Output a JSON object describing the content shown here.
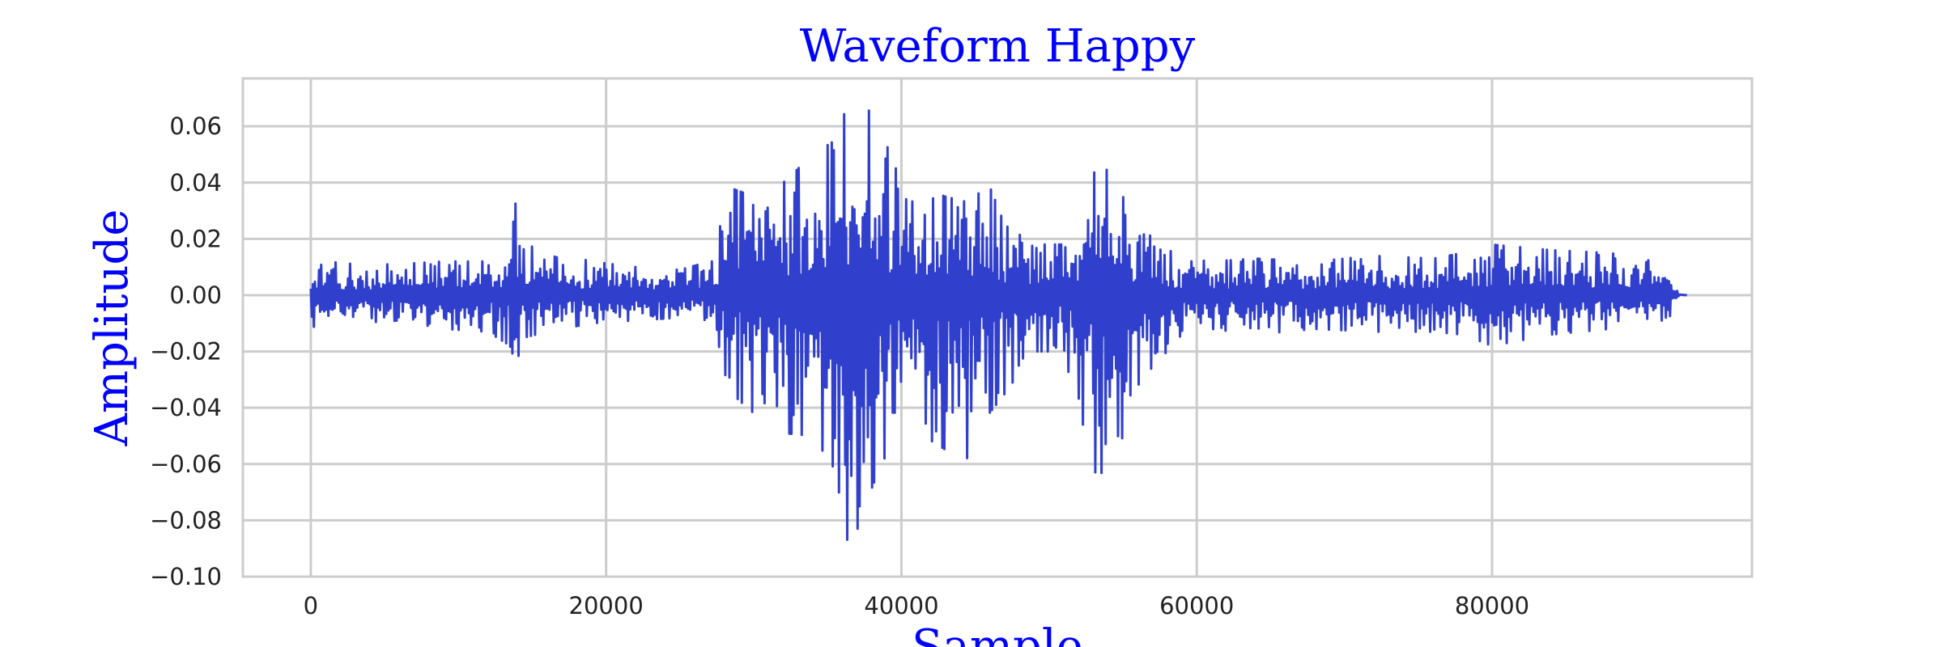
{
  "chart_data": {
    "type": "line",
    "title": "Waveform Happy",
    "xlabel": "Sample",
    "ylabel": "Amplitude",
    "xlim": [
      -4600,
      97600
    ],
    "ylim": [
      -0.1,
      0.077
    ],
    "grid": true,
    "x_ticks": [
      0,
      20000,
      40000,
      60000,
      80000
    ],
    "x_tick_labels": [
      "0",
      "20000",
      "40000",
      "60000",
      "80000"
    ],
    "y_ticks": [
      -0.1,
      -0.08,
      -0.06,
      -0.04,
      -0.02,
      0.0,
      0.02,
      0.04,
      0.06
    ],
    "y_tick_labels": [
      "−0.10",
      "−0.08",
      "−0.06",
      "−0.04",
      "−0.02",
      "0.00",
      "0.02",
      "0.04",
      "0.06"
    ],
    "series": [
      {
        "color": "#3040cc",
        "sample_count": 92700,
        "envelope": {
          "x": [
            0,
            1000,
            3000,
            6000,
            9000,
            12000,
            13500,
            14000,
            14500,
            16000,
            19000,
            22000,
            25000,
            27000,
            28500,
            30000,
            32000,
            34000,
            35500,
            36500,
            37500,
            38500,
            40000,
            41500,
            43000,
            44500,
            45500,
            47000,
            49000,
            51000,
            52500,
            53500,
            55000,
            57000,
            59000,
            61000,
            64000,
            68000,
            72000,
            76000,
            78000,
            80000,
            84000,
            88000,
            91000,
            92000,
            92700
          ],
          "max": [
            0.008,
            0.012,
            0.011,
            0.011,
            0.012,
            0.012,
            0.016,
            0.039,
            0.02,
            0.016,
            0.012,
            0.01,
            0.009,
            0.012,
            0.038,
            0.035,
            0.04,
            0.05,
            0.055,
            0.07,
            0.068,
            0.06,
            0.04,
            0.038,
            0.035,
            0.033,
            0.045,
            0.025,
            0.018,
            0.018,
            0.038,
            0.048,
            0.035,
            0.02,
            0.013,
            0.012,
            0.013,
            0.012,
            0.014,
            0.013,
            0.015,
            0.018,
            0.016,
            0.015,
            0.012,
            0.01,
            0.001
          ],
          "min": [
            -0.013,
            -0.01,
            -0.01,
            -0.009,
            -0.012,
            -0.013,
            -0.018,
            -0.035,
            -0.015,
            -0.013,
            -0.01,
            -0.009,
            -0.008,
            -0.012,
            -0.035,
            -0.042,
            -0.049,
            -0.05,
            -0.062,
            -0.092,
            -0.075,
            -0.062,
            -0.045,
            -0.05,
            -0.055,
            -0.058,
            -0.045,
            -0.035,
            -0.02,
            -0.02,
            -0.055,
            -0.075,
            -0.05,
            -0.025,
            -0.015,
            -0.012,
            -0.014,
            -0.012,
            -0.013,
            -0.013,
            -0.014,
            -0.018,
            -0.014,
            -0.012,
            -0.01,
            -0.008,
            0.0
          ]
        }
      }
    ]
  }
}
